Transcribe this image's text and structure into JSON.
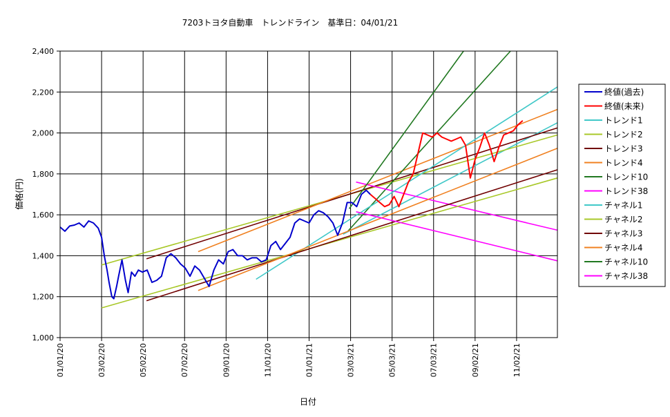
{
  "chart_data": {
    "type": "line",
    "title": "7203トヨタ自動車　トレンドライン　基準日：04/01/21",
    "xlabel": "日付",
    "ylabel": "価格(円)",
    "ylim": [
      1000,
      2400
    ],
    "yticks": [
      1000,
      1200,
      1400,
      1600,
      1800,
      2000,
      2200,
      2400
    ],
    "ytick_labels": [
      "1,000",
      "1,200",
      "1,400",
      "1,600",
      "1,800",
      "2,000",
      "2,200",
      "2,400"
    ],
    "x_range": [
      "2020-01-01",
      "2022-01-01"
    ],
    "xticks": [
      "2020-01-01",
      "2020-03-02",
      "2020-05-02",
      "2020-07-02",
      "2020-09-01",
      "2020-11-01",
      "2021-01-01",
      "2021-03-03",
      "2021-05-03",
      "2021-07-03",
      "2021-09-02",
      "2021-11-02"
    ],
    "xtick_labels": [
      "01/01/20",
      "03/02/20",
      "05/02/20",
      "07/02/20",
      "09/01/20",
      "11/01/20",
      "01/01/21",
      "03/03/21",
      "05/03/21",
      "07/03/21",
      "09/02/21",
      "11/02/21"
    ],
    "grid": true,
    "legend_position": "right",
    "series": [
      {
        "name": "終値(過去)",
        "color": "#0000cc",
        "x": [
          "2020-01-01",
          "2020-01-08",
          "2020-01-15",
          "2020-01-22",
          "2020-01-29",
          "2020-02-05",
          "2020-02-12",
          "2020-02-19",
          "2020-02-26",
          "2020-03-02",
          "2020-03-06",
          "2020-03-10",
          "2020-03-13",
          "2020-03-17",
          "2020-03-20",
          "2020-03-24",
          "2020-03-27",
          "2020-04-01",
          "2020-04-06",
          "2020-04-10",
          "2020-04-15",
          "2020-04-20",
          "2020-04-25",
          "2020-05-01",
          "2020-05-08",
          "2020-05-15",
          "2020-05-22",
          "2020-05-29",
          "2020-06-05",
          "2020-06-12",
          "2020-06-19",
          "2020-06-26",
          "2020-07-03",
          "2020-07-10",
          "2020-07-17",
          "2020-07-24",
          "2020-07-31",
          "2020-08-07",
          "2020-08-14",
          "2020-08-21",
          "2020-08-28",
          "2020-09-04",
          "2020-09-11",
          "2020-09-18",
          "2020-09-25",
          "2020-10-02",
          "2020-10-09",
          "2020-10-16",
          "2020-10-23",
          "2020-10-30",
          "2020-11-06",
          "2020-11-13",
          "2020-11-20",
          "2020-11-27",
          "2020-12-04",
          "2020-12-11",
          "2020-12-18",
          "2020-12-25",
          "2021-01-01",
          "2021-01-08",
          "2021-01-15",
          "2021-01-22",
          "2021-01-29",
          "2021-02-05",
          "2021-02-12",
          "2021-02-19",
          "2021-02-26",
          "2021-03-05",
          "2021-03-12",
          "2021-03-19",
          "2021-03-26",
          "2021-04-01"
        ],
        "values": [
          1540,
          1520,
          1545,
          1550,
          1560,
          1540,
          1570,
          1560,
          1535,
          1490,
          1400,
          1330,
          1270,
          1200,
          1190,
          1250,
          1300,
          1380,
          1280,
          1220,
          1320,
          1300,
          1330,
          1320,
          1330,
          1270,
          1280,
          1300,
          1390,
          1410,
          1390,
          1360,
          1340,
          1300,
          1350,
          1330,
          1290,
          1250,
          1330,
          1380,
          1360,
          1420,
          1430,
          1400,
          1400,
          1380,
          1390,
          1390,
          1370,
          1380,
          1450,
          1470,
          1430,
          1460,
          1490,
          1560,
          1580,
          1570,
          1560,
          1600,
          1620,
          1610,
          1590,
          1560,
          1500,
          1560,
          1660,
          1660,
          1640,
          1700,
          1720,
          1700
        ]
      },
      {
        "name": "終値(未来)",
        "color": "#ff0000",
        "x": [
          "2021-04-01",
          "2021-04-08",
          "2021-04-15",
          "2021-04-22",
          "2021-04-29",
          "2021-05-06",
          "2021-05-13",
          "2021-05-20",
          "2021-05-27",
          "2021-06-03",
          "2021-06-10",
          "2021-06-17",
          "2021-06-24",
          "2021-07-01",
          "2021-07-08",
          "2021-07-15",
          "2021-07-22",
          "2021-07-29",
          "2021-08-05",
          "2021-08-12",
          "2021-08-19",
          "2021-08-26",
          "2021-09-02",
          "2021-09-09",
          "2021-09-16",
          "2021-09-23",
          "2021-09-30",
          "2021-10-07",
          "2021-10-14",
          "2021-10-21",
          "2021-10-28",
          "2021-11-04",
          "2021-11-11"
        ],
        "values": [
          1700,
          1680,
          1660,
          1640,
          1650,
          1690,
          1640,
          1700,
          1760,
          1800,
          1900,
          2000,
          1990,
          1980,
          2000,
          1980,
          1970,
          1960,
          1970,
          1980,
          1940,
          1780,
          1870,
          1930,
          2000,
          1940,
          1860,
          1930,
          1990,
          2000,
          2010,
          2040,
          2060
        ]
      },
      {
        "name": "トレンド1",
        "color": "#40c8c8",
        "x": [
          "2021-02-20",
          "2022-01-01"
        ],
        "values": [
          1505,
          2050
        ]
      },
      {
        "name": "トレンド2",
        "color": "#a8c828",
        "x": [
          "2020-03-02",
          "2022-01-01"
        ],
        "values": [
          1355,
          1990
        ]
      },
      {
        "name": "トレンド3",
        "color": "#700000",
        "x": [
          "2020-05-07",
          "2022-01-01"
        ],
        "values": [
          1385,
          2025
        ]
      },
      {
        "name": "トレンド4",
        "color": "#f08020",
        "x": [
          "2020-07-22",
          "2022-01-01"
        ],
        "values": [
          1420,
          2115
        ]
      },
      {
        "name": "トレンド10",
        "color": "#207820",
        "x": [
          "2021-02-27",
          "2021-10-24"
        ],
        "values": [
          1520,
          2400
        ]
      },
      {
        "name": "トレンド38",
        "color": "#ff00ff",
        "x": [
          "2021-03-11",
          "2022-01-01"
        ],
        "values": [
          1760,
          1525
        ]
      },
      {
        "name": "チャネル1",
        "color": "#40c8c8",
        "x": [
          "2020-10-15",
          "2022-01-01"
        ],
        "values": [
          1285,
          2225
        ]
      },
      {
        "name": "チャネル2",
        "color": "#a8c828",
        "x": [
          "2020-03-02",
          "2022-01-01"
        ],
        "values": [
          1145,
          1780
        ]
      },
      {
        "name": "チャネル3",
        "color": "#700000",
        "x": [
          "2020-05-07",
          "2022-01-01"
        ],
        "values": [
          1180,
          1820
        ]
      },
      {
        "name": "チャネル4",
        "color": "#f08020",
        "x": [
          "2020-07-22",
          "2022-01-01"
        ],
        "values": [
          1230,
          1925
        ]
      },
      {
        "name": "チャネル10",
        "color": "#207820",
        "x": [
          "2021-03-01",
          "2021-08-16"
        ],
        "values": [
          1630,
          2400
        ]
      },
      {
        "name": "チャネル38",
        "color": "#ff00ff",
        "x": [
          "2021-03-11",
          "2022-01-01"
        ],
        "values": [
          1615,
          1375
        ]
      }
    ]
  }
}
